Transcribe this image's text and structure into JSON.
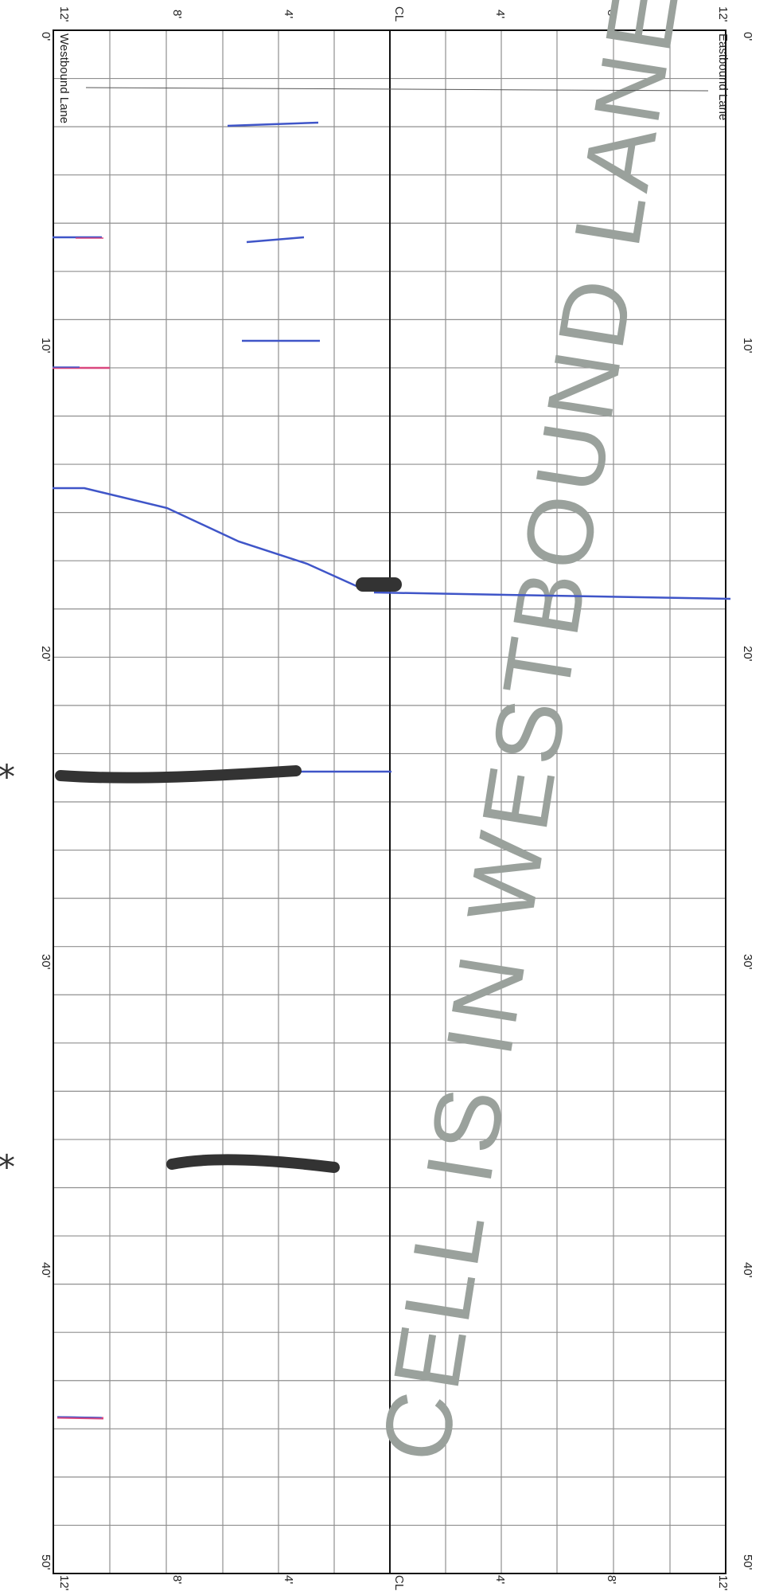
{
  "diagram": {
    "lanes": {
      "westbound": "Westbound Lane",
      "eastbound": "Eastbound Lane"
    },
    "centerline_label": "CL",
    "cross_lane_labels_top": [
      "12'",
      "8'",
      "4'",
      "CL",
      "4'",
      "8'",
      "12'"
    ],
    "cross_lane_labels_bottom": [
      "12'",
      "8'",
      "4'",
      "CL",
      "4'",
      "8'",
      "12'"
    ],
    "length_labels": [
      "0'",
      "10'",
      "20'",
      "30'",
      "40'",
      "50'"
    ],
    "watermark": "CELL IS IN WESTBOUND LANE",
    "annotations": [
      "*",
      "*"
    ],
    "colors": {
      "crack_blue": "#3f55c8",
      "crack_red": "#d9477e",
      "sealed_black": "#333333",
      "watermark": "#9aa19c",
      "grid": "#8f8f8f"
    }
  }
}
